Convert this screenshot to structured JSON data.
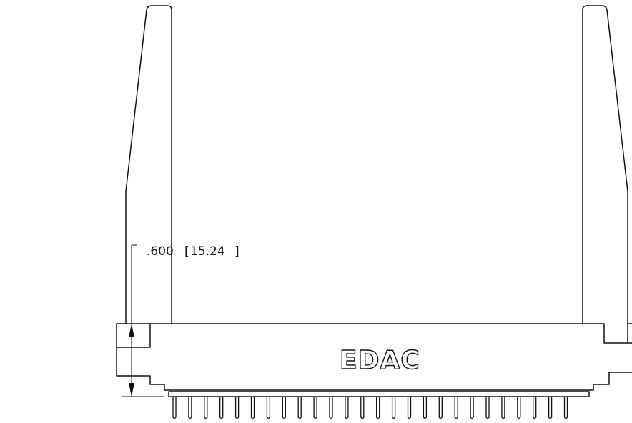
{
  "dimension": {
    "inch_value": ".600",
    "mm_value": "15.24"
  },
  "logo": {
    "text": "EDAC"
  },
  "connector": {
    "pin_count": 26
  }
}
